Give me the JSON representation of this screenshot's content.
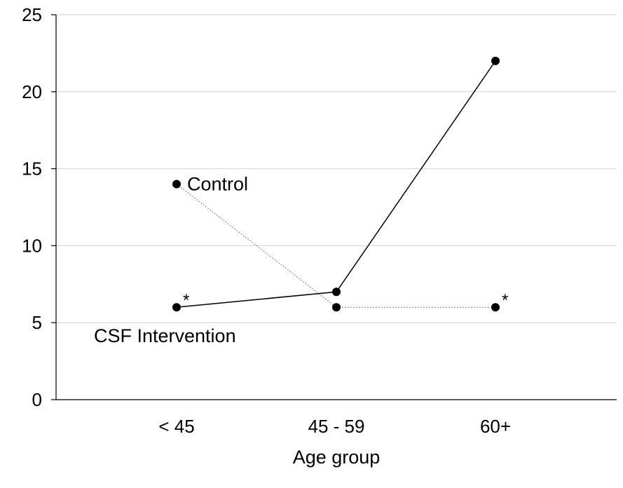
{
  "chart_data": {
    "type": "line",
    "title": "",
    "xlabel": "Age group",
    "ylabel": "",
    "categories": [
      "< 45",
      "45 - 59",
      "60+"
    ],
    "ylim": [
      0,
      25
    ],
    "yticks": [
      0,
      5,
      10,
      15,
      20,
      25
    ],
    "grid": true,
    "legend": "none",
    "series": [
      {
        "name": "Control",
        "values": [
          14,
          6,
          6
        ],
        "line_style": "dotted",
        "color": "#000000",
        "label_at_index": 0
      },
      {
        "name": "CSF Intervention",
        "values": [
          6,
          7,
          22
        ],
        "line_style": "solid",
        "color": "#000000",
        "label_at_index": 0
      }
    ],
    "annotations": [
      {
        "text": "*",
        "category_index": 0,
        "value": 6
      },
      {
        "text": "*",
        "category_index": 2,
        "value": 6
      }
    ]
  }
}
